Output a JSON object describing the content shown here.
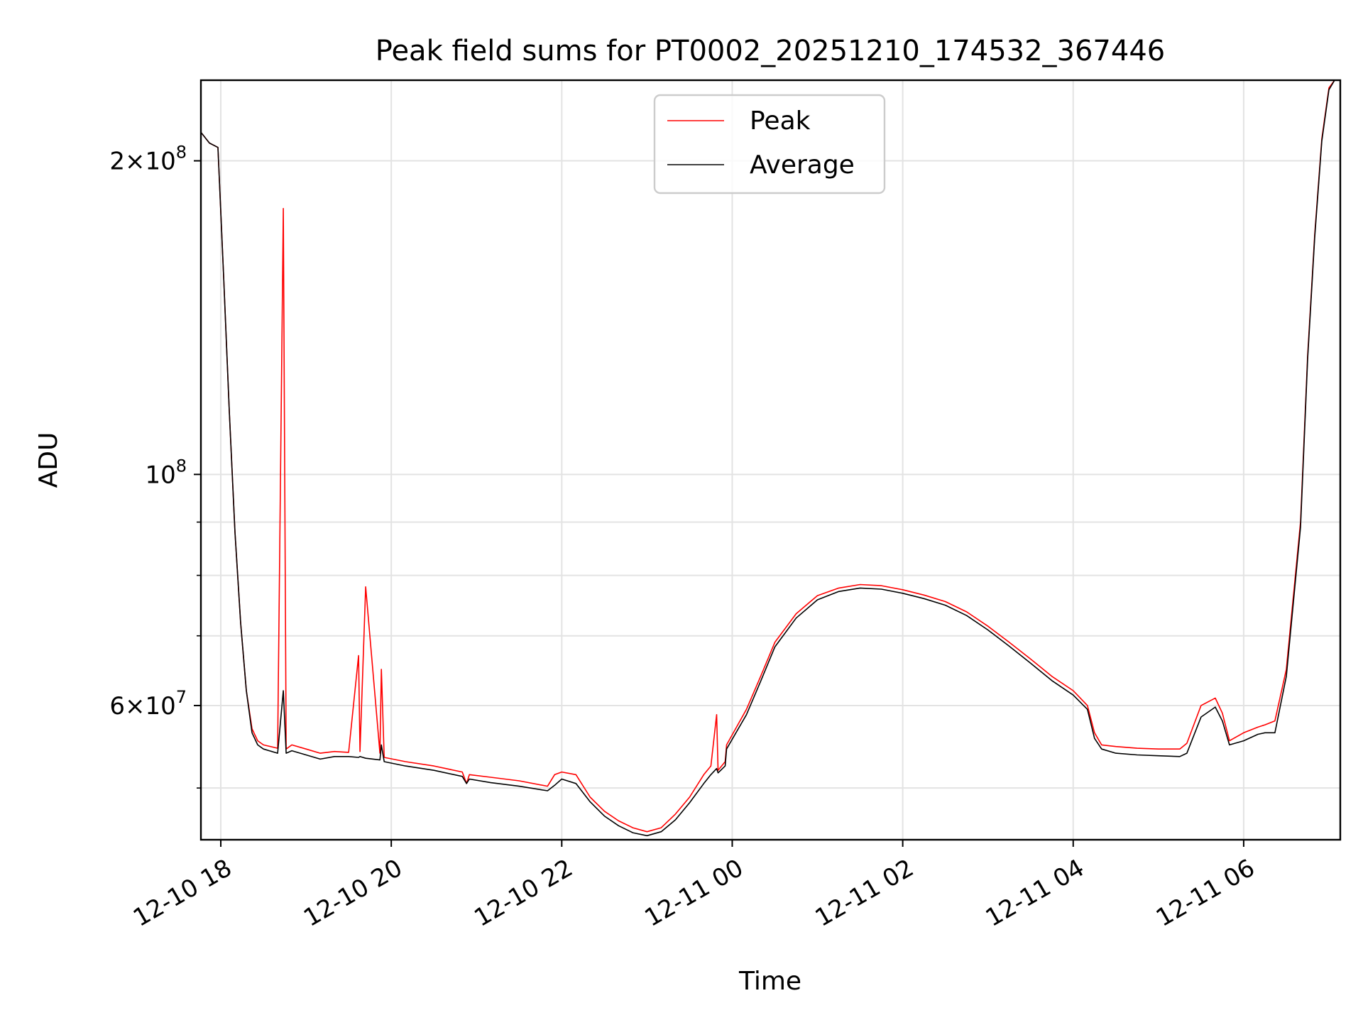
{
  "chart_data": {
    "type": "line",
    "title": "Peak field sums for PT0002_20251210_174532_367446",
    "xlabel": "Time",
    "ylabel": "ADU",
    "yscale": "log",
    "grid": true,
    "legend_position": "top-center",
    "x_ticks": [
      {
        "value": "2025-12-10 18:00",
        "label": "12-10 18"
      },
      {
        "value": "2025-12-10 20:00",
        "label": "12-10 20"
      },
      {
        "value": "2025-12-10 22:00",
        "label": "12-10 22"
      },
      {
        "value": "2025-12-11 00:00",
        "label": "12-11 00"
      },
      {
        "value": "2025-12-11 02:00",
        "label": "12-11 02"
      },
      {
        "value": "2025-12-11 04:00",
        "label": "12-11 04"
      },
      {
        "value": "2025-12-11 06:00",
        "label": "12-11 06"
      }
    ],
    "xlim": [
      "2025-12-10 17:46",
      "2025-12-11 07:08"
    ],
    "ylim": [
      44600000,
      239000000
    ],
    "y_major_ticks": [
      {
        "value": 200000000,
        "mantissa": "2",
        "exponent": "8"
      },
      {
        "value": 100000000,
        "mantissa": "",
        "exponent": "8"
      },
      {
        "value": 60000000,
        "mantissa": "6",
        "exponent": "7"
      }
    ],
    "y_minor_ticks": [
      50000000,
      70000000,
      80000000,
      90000000
    ],
    "series": [
      {
        "name": "Peak",
        "color": "#ff0000",
        "x": [
          "2025-12-10 17:46",
          "2025-12-10 17:52",
          "2025-12-10 17:58",
          "2025-12-10 18:02",
          "2025-12-10 18:06",
          "2025-12-10 18:10",
          "2025-12-10 18:14",
          "2025-12-10 18:18",
          "2025-12-10 18:22",
          "2025-12-10 18:26",
          "2025-12-10 18:30",
          "2025-12-10 18:40",
          "2025-12-10 18:44",
          "2025-12-10 18:46",
          "2025-12-10 18:50",
          "2025-12-10 19:00",
          "2025-12-10 19:10",
          "2025-12-10 19:20",
          "2025-12-10 19:30",
          "2025-12-10 19:37",
          "2025-12-10 19:38",
          "2025-12-10 19:42",
          "2025-12-10 19:52",
          "2025-12-10 19:53",
          "2025-12-10 19:55",
          "2025-12-10 20:10",
          "2025-12-10 20:30",
          "2025-12-10 20:50",
          "2025-12-10 20:53",
          "2025-12-10 20:55",
          "2025-12-10 21:10",
          "2025-12-10 21:30",
          "2025-12-10 21:50",
          "2025-12-10 21:55",
          "2025-12-10 22:00",
          "2025-12-10 22:10",
          "2025-12-10 22:20",
          "2025-12-10 22:30",
          "2025-12-10 22:40",
          "2025-12-10 22:50",
          "2025-12-10 23:00",
          "2025-12-10 23:10",
          "2025-12-10 23:20",
          "2025-12-10 23:30",
          "2025-12-10 23:40",
          "2025-12-10 23:45",
          "2025-12-10 23:49",
          "2025-12-10 23:50",
          "2025-12-10 23:55",
          "2025-12-10 23:56",
          "2025-12-11 00:10",
          "2025-12-11 00:20",
          "2025-12-11 00:30",
          "2025-12-11 00:45",
          "2025-12-11 01:00",
          "2025-12-11 01:15",
          "2025-12-11 01:30",
          "2025-12-11 01:45",
          "2025-12-11 02:00",
          "2025-12-11 02:15",
          "2025-12-11 02:30",
          "2025-12-11 02:45",
          "2025-12-11 03:00",
          "2025-12-11 03:15",
          "2025-12-11 03:30",
          "2025-12-11 03:45",
          "2025-12-11 04:00",
          "2025-12-11 04:10",
          "2025-12-11 04:15",
          "2025-12-11 04:20",
          "2025-12-11 04:30",
          "2025-12-11 04:45",
          "2025-12-11 05:00",
          "2025-12-11 05:15",
          "2025-12-11 05:20",
          "2025-12-11 05:30",
          "2025-12-11 05:40",
          "2025-12-11 05:45",
          "2025-12-11 05:50",
          "2025-12-11 06:00",
          "2025-12-11 06:10",
          "2025-12-11 06:15",
          "2025-12-11 06:22",
          "2025-12-11 06:30",
          "2025-12-11 06:40",
          "2025-12-11 06:45",
          "2025-12-11 06:50",
          "2025-12-11 06:55",
          "2025-12-11 07:00",
          "2025-12-11 07:04",
          "2025-12-11 07:08"
        ],
        "values": [
          213000000,
          208000000,
          206000000,
          155000000,
          115000000,
          88000000,
          72000000,
          62000000,
          57000000,
          55500000,
          55000000,
          54600000,
          180000000,
          54500000,
          55000000,
          54500000,
          54000000,
          54200000,
          54100000,
          67000000,
          54200000,
          78000000,
          54000000,
          65000000,
          53500000,
          53000000,
          52500000,
          51800000,
          50500000,
          51500000,
          51200000,
          50800000,
          50200000,
          51500000,
          51800000,
          51500000,
          49000000,
          47500000,
          46500000,
          45800000,
          45400000,
          45800000,
          47200000,
          49000000,
          51500000,
          52500000,
          58800000,
          52000000,
          53000000,
          55000000,
          59500000,
          64000000,
          69000000,
          73500000,
          76500000,
          77800000,
          78400000,
          78200000,
          77500000,
          76600000,
          75500000,
          73800000,
          71500000,
          69000000,
          66500000,
          64000000,
          62000000,
          60000000,
          56500000,
          55000000,
          54800000,
          54600000,
          54500000,
          54500000,
          55200000,
          60000000,
          61000000,
          59000000,
          55500000,
          56500000,
          57200000,
          57500000,
          58000000,
          65000000,
          90000000,
          130000000,
          170000000,
          210000000,
          235000000,
          239000000,
          239000000
        ]
      },
      {
        "name": "Average",
        "color": "#000000",
        "x": [
          "2025-12-10 17:46",
          "2025-12-10 17:52",
          "2025-12-10 17:58",
          "2025-12-10 18:02",
          "2025-12-10 18:06",
          "2025-12-10 18:10",
          "2025-12-10 18:14",
          "2025-12-10 18:18",
          "2025-12-10 18:22",
          "2025-12-10 18:26",
          "2025-12-10 18:30",
          "2025-12-10 18:40",
          "2025-12-10 18:44",
          "2025-12-10 18:46",
          "2025-12-10 18:50",
          "2025-12-10 19:00",
          "2025-12-10 19:10",
          "2025-12-10 19:20",
          "2025-12-10 19:30",
          "2025-12-10 19:37",
          "2025-12-10 19:38",
          "2025-12-10 19:42",
          "2025-12-10 19:52",
          "2025-12-10 19:53",
          "2025-12-10 19:55",
          "2025-12-10 20:10",
          "2025-12-10 20:30",
          "2025-12-10 20:50",
          "2025-12-10 20:53",
          "2025-12-10 20:55",
          "2025-12-10 21:10",
          "2025-12-10 21:30",
          "2025-12-10 21:50",
          "2025-12-10 21:55",
          "2025-12-10 22:00",
          "2025-12-10 22:10",
          "2025-12-10 22:20",
          "2025-12-10 22:30",
          "2025-12-10 22:40",
          "2025-12-10 22:50",
          "2025-12-10 23:00",
          "2025-12-10 23:10",
          "2025-12-10 23:20",
          "2025-12-10 23:30",
          "2025-12-10 23:40",
          "2025-12-10 23:45",
          "2025-12-10 23:49",
          "2025-12-10 23:50",
          "2025-12-10 23:55",
          "2025-12-10 23:56",
          "2025-12-11 00:10",
          "2025-12-11 00:20",
          "2025-12-11 00:30",
          "2025-12-11 00:45",
          "2025-12-11 01:00",
          "2025-12-11 01:15",
          "2025-12-11 01:30",
          "2025-12-11 01:45",
          "2025-12-11 02:00",
          "2025-12-11 02:15",
          "2025-12-11 02:30",
          "2025-12-11 02:45",
          "2025-12-11 03:00",
          "2025-12-11 03:15",
          "2025-12-11 03:30",
          "2025-12-11 03:45",
          "2025-12-11 04:00",
          "2025-12-11 04:10",
          "2025-12-11 04:15",
          "2025-12-11 04:20",
          "2025-12-11 04:30",
          "2025-12-11 04:45",
          "2025-12-11 05:00",
          "2025-12-11 05:15",
          "2025-12-11 05:20",
          "2025-12-11 05:30",
          "2025-12-11 05:40",
          "2025-12-11 05:45",
          "2025-12-11 05:50",
          "2025-12-11 06:00",
          "2025-12-11 06:10",
          "2025-12-11 06:15",
          "2025-12-11 06:22",
          "2025-12-11 06:30",
          "2025-12-11 06:40",
          "2025-12-11 06:45",
          "2025-12-11 06:50",
          "2025-12-11 06:55",
          "2025-12-11 07:00",
          "2025-12-11 07:04",
          "2025-12-11 07:08"
        ],
        "values": [
          213000000,
          208000000,
          206000000,
          155000000,
          115000000,
          88000000,
          72000000,
          62000000,
          56500000,
          55000000,
          54500000,
          54000000,
          62000000,
          54000000,
          54300000,
          53800000,
          53300000,
          53600000,
          53600000,
          53500000,
          53600000,
          53400000,
          53200000,
          55000000,
          53000000,
          52500000,
          52000000,
          51300000,
          50500000,
          51000000,
          50600000,
          50200000,
          49700000,
          50300000,
          51000000,
          50500000,
          48500000,
          47000000,
          46000000,
          45300000,
          45000000,
          45400000,
          46600000,
          48400000,
          50500000,
          51500000,
          52200000,
          51700000,
          52500000,
          54500000,
          58800000,
          63300000,
          68300000,
          72800000,
          75800000,
          77200000,
          77800000,
          77600000,
          76900000,
          76000000,
          74900000,
          73200000,
          70900000,
          68400000,
          65900000,
          63400000,
          61400000,
          59500000,
          55800000,
          54500000,
          54000000,
          53800000,
          53700000,
          53600000,
          54000000,
          58500000,
          59800000,
          58000000,
          55000000,
          55500000,
          56300000,
          56500000,
          56500000,
          64000000,
          89000000,
          129000000,
          169000000,
          209000000,
          234000000,
          239000000,
          239000000
        ]
      }
    ]
  }
}
